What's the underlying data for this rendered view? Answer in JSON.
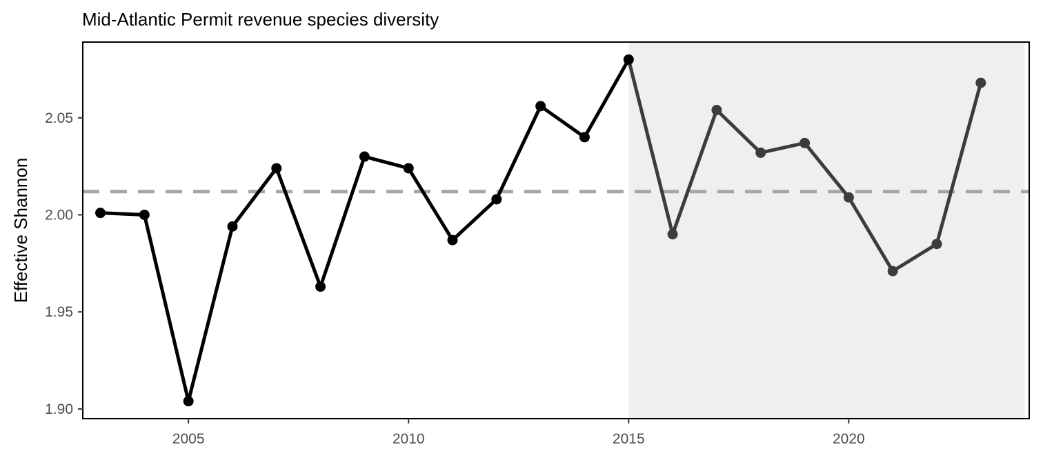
{
  "chart_data": {
    "type": "line",
    "title": "Mid-Atlantic Permit revenue species diversity",
    "xlabel": "",
    "ylabel": "Effective Shannon",
    "xlim": [
      2002.6,
      2024.1
    ],
    "ylim": [
      1.895,
      2.089
    ],
    "x_ticks": [
      2005,
      2010,
      2015,
      2020
    ],
    "x_tick_labels": [
      "2005",
      "2010",
      "2015",
      "2020"
    ],
    "y_ticks": [
      1.9,
      1.95,
      2.0,
      2.05
    ],
    "y_tick_labels": [
      "1.90",
      "1.95",
      "2.00",
      "2.05"
    ],
    "reference_line": {
      "y": 2.012,
      "style": "dashed",
      "color": "#a6a6a6"
    },
    "shaded_region": {
      "x_start": 2015,
      "x_end": 2024,
      "color": "#efefef"
    },
    "series": [
      {
        "x": [
          2003,
          2004,
          2005,
          2006,
          2007,
          2008,
          2009,
          2010,
          2011,
          2012,
          2013,
          2014,
          2015,
          2016,
          2017,
          2018,
          2019,
          2020,
          2021,
          2022,
          2023
        ],
        "values": [
          2.001,
          2.0,
          1.904,
          1.994,
          2.024,
          1.963,
          2.03,
          2.024,
          1.987,
          2.008,
          2.056,
          2.04,
          2.08,
          1.99,
          2.054,
          2.032,
          2.037,
          2.009,
          1.971,
          1.985,
          2.068
        ]
      }
    ],
    "line_colors": {
      "before": "#000000",
      "after": "#3c3c3c"
    },
    "grid": false,
    "legend": "none"
  }
}
